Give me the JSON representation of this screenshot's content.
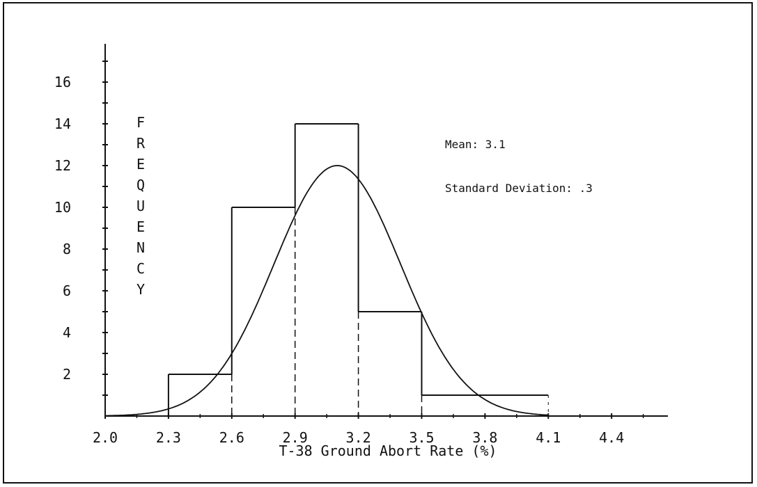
{
  "chart_data": {
    "type": "bar",
    "xlabel": "T-38 Ground Abort Rate (%)",
    "ylabel": "FREQUENCY",
    "x_tick_labels": [
      "2.0",
      "2.3",
      "2.6",
      "2.9",
      "3.2",
      "3.5",
      "3.8",
      "4.1",
      "4.4"
    ],
    "y_tick_labels": [
      "2",
      "4",
      "6",
      "8",
      "10",
      "12",
      "14",
      "16"
    ],
    "xlim": [
      2.0,
      4.6
    ],
    "ylim": [
      0,
      17
    ],
    "bins": [
      {
        "from": 2.0,
        "to": 2.3,
        "value": 0
      },
      {
        "from": 2.3,
        "to": 2.6,
        "value": 2
      },
      {
        "from": 2.6,
        "to": 2.9,
        "value": 10
      },
      {
        "from": 2.9,
        "to": 3.2,
        "value": 14
      },
      {
        "from": 3.2,
        "to": 3.5,
        "value": 5
      },
      {
        "from": 3.5,
        "to": 4.1,
        "value": 1
      }
    ],
    "normal_curve": {
      "mean": 3.1,
      "sd": 0.3,
      "peak": 12,
      "x_range": [
        2.0,
        4.1
      ]
    },
    "annotations": [
      "Mean: 3.1",
      "Standard Deviation: .3"
    ],
    "grid": false,
    "legend": "none"
  }
}
